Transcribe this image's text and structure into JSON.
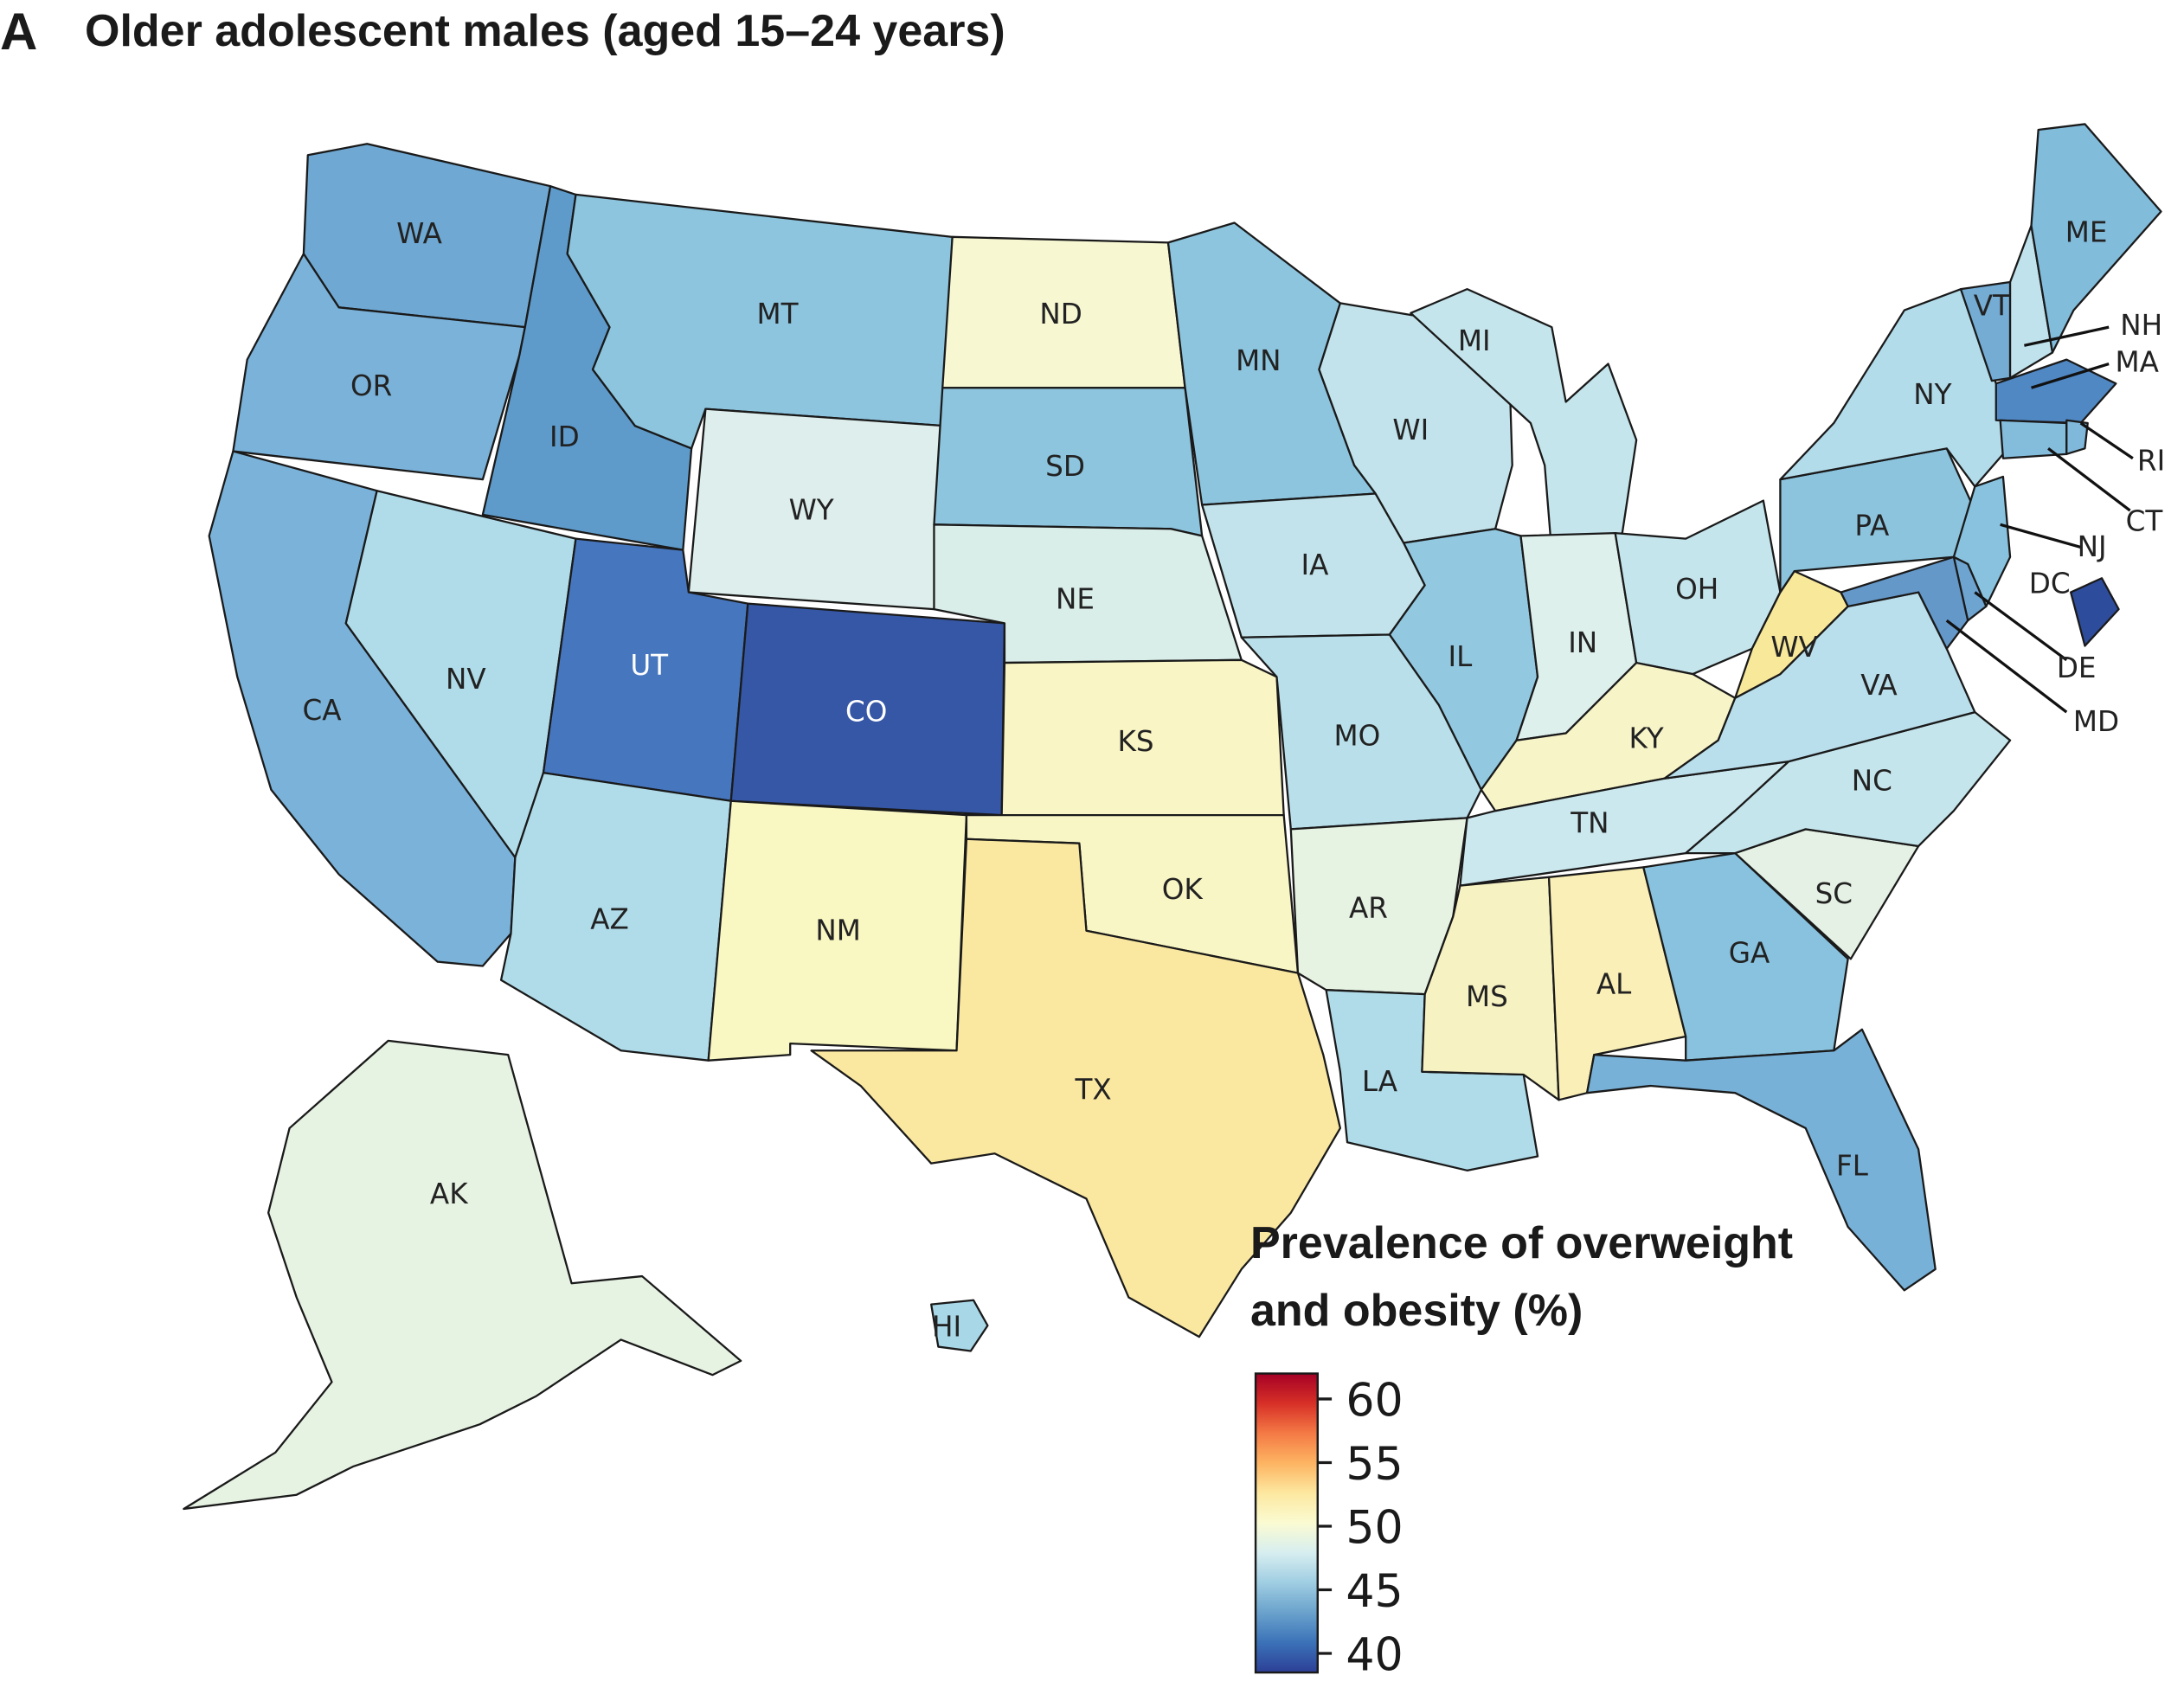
{
  "panel_letter": "A",
  "title": "Older adolescent males (aged 15–24 years)",
  "legend": {
    "title_line1": "Prevalence of overweight",
    "title_line2": "and obesity (%)",
    "ticks": [
      {
        "label": "60",
        "value": 60
      },
      {
        "label": "55",
        "value": 55
      },
      {
        "label": "50",
        "value": 50
      },
      {
        "label": "45",
        "value": 45
      },
      {
        "label": "40",
        "value": 40
      }
    ],
    "range": [
      38.5,
      62
    ],
    "colormap": [
      "#2c3f96",
      "#3b72b8",
      "#6aa2cc",
      "#9fcde2",
      "#d7eef0",
      "#fafbd2",
      "#fde8a0",
      "#fdb462",
      "#f47a45",
      "#d73027",
      "#a50026"
    ]
  },
  "states": [
    {
      "code": "WA",
      "label": "WA",
      "value": 44.3,
      "color": "#6fa8d2"
    },
    {
      "code": "OR",
      "label": "OR",
      "value": 44.8,
      "color": "#7ab2d9"
    },
    {
      "code": "CA",
      "label": "CA",
      "value": 44.8,
      "color": "#7ab2d9"
    },
    {
      "code": "ID",
      "label": "ID",
      "value": 43.0,
      "color": "#5e9bcb"
    },
    {
      "code": "NV",
      "label": "NV",
      "value": 47.0,
      "color": "#b0dcea"
    },
    {
      "code": "MT",
      "label": "MT",
      "value": 45.6,
      "color": "#8dc5de"
    },
    {
      "code": "WY",
      "label": "WY",
      "value": 48.6,
      "color": "#deeeec"
    },
    {
      "code": "UT",
      "label": "UT",
      "value": 41.5,
      "color": "#4676be"
    },
    {
      "code": "CO",
      "label": "CO",
      "value": 40.0,
      "color": "#3557a6"
    },
    {
      "code": "AZ",
      "label": "AZ",
      "value": 47.0,
      "color": "#b0dcea"
    },
    {
      "code": "NM",
      "label": "NM",
      "value": 50.5,
      "color": "#f9f7c2"
    },
    {
      "code": "ND",
      "label": "ND",
      "value": 50.2,
      "color": "#f7f7d2"
    },
    {
      "code": "SD",
      "label": "SD",
      "value": 45.6,
      "color": "#8dc5de"
    },
    {
      "code": "NE",
      "label": "NE",
      "value": 48.5,
      "color": "#d9ede9"
    },
    {
      "code": "KS",
      "label": "KS",
      "value": 50.5,
      "color": "#f9f5c4"
    },
    {
      "code": "OK",
      "label": "OK",
      "value": 50.4,
      "color": "#f9f6c5"
    },
    {
      "code": "TX",
      "label": "TX",
      "value": 52.3,
      "color": "#fbe8a0"
    },
    {
      "code": "MN",
      "label": "MN",
      "value": 45.6,
      "color": "#8dc5de"
    },
    {
      "code": "IA",
      "label": "IA",
      "value": 47.5,
      "color": "#c2e3eb"
    },
    {
      "code": "MO",
      "label": "MO",
      "value": 47.2,
      "color": "#b8dfea"
    },
    {
      "code": "AR",
      "label": "AR",
      "value": 49.0,
      "color": "#e6f2e2"
    },
    {
      "code": "LA",
      "label": "LA",
      "value": 47.0,
      "color": "#b0dcea"
    },
    {
      "code": "WI",
      "label": "WI",
      "value": 47.5,
      "color": "#c2e3eb"
    },
    {
      "code": "IL",
      "label": "IL",
      "value": 45.8,
      "color": "#92c8e0"
    },
    {
      "code": "MI",
      "label": "MI",
      "value": 47.6,
      "color": "#c5e5ec"
    },
    {
      "code": "IN",
      "label": "IN",
      "value": 48.6,
      "color": "#def0ec"
    },
    {
      "code": "OH",
      "label": "OH",
      "value": 47.6,
      "color": "#c5e5ec"
    },
    {
      "code": "KY",
      "label": "KY",
      "value": 50.4,
      "color": "#f7f4c8"
    },
    {
      "code": "TN",
      "label": "TN",
      "value": 47.8,
      "color": "#cbe8ef"
    },
    {
      "code": "MS",
      "label": "MS",
      "value": 50.6,
      "color": "#f7f2c2"
    },
    {
      "code": "AL",
      "label": "AL",
      "value": 51.2,
      "color": "#faefb6"
    },
    {
      "code": "GA",
      "label": "GA",
      "value": 45.4,
      "color": "#88c2de"
    },
    {
      "code": "FL",
      "label": "FL",
      "value": 44.7,
      "color": "#78b1d8"
    },
    {
      "code": "SC",
      "label": "SC",
      "value": 49.2,
      "color": "#e4f1e4"
    },
    {
      "code": "NC",
      "label": "NC",
      "value": 47.6,
      "color": "#c5e5ec"
    },
    {
      "code": "VA",
      "label": "VA",
      "value": 47.3,
      "color": "#badfec"
    },
    {
      "code": "WV",
      "label": "WV",
      "value": 52.0,
      "color": "#f8e89a"
    },
    {
      "code": "PA",
      "label": "PA",
      "value": 45.7,
      "color": "#8cc4de"
    },
    {
      "code": "NY",
      "label": "NY",
      "value": 46.8,
      "color": "#b3dceb"
    },
    {
      "code": "VT",
      "label": "VT",
      "value": 44.5,
      "color": "#74acd4"
    },
    {
      "code": "NH",
      "label": "NH",
      "value": 47.4,
      "color": "#c0e2ec"
    },
    {
      "code": "ME",
      "label": "ME",
      "value": 45.2,
      "color": "#82bcdb"
    },
    {
      "code": "MA",
      "label": "MA",
      "value": 42.3,
      "color": "#5088c4"
    },
    {
      "code": "RI",
      "label": "RI",
      "value": 45.0,
      "color": "#7fb8da"
    },
    {
      "code": "CT",
      "label": "CT",
      "value": 45.2,
      "color": "#84bcdc"
    },
    {
      "code": "NJ",
      "label": "NJ",
      "value": 45.4,
      "color": "#88c2de"
    },
    {
      "code": "DE",
      "label": "DE",
      "value": 44.2,
      "color": "#6ea4d0"
    },
    {
      "code": "MD",
      "label": "MD",
      "value": 43.4,
      "color": "#6498c9"
    },
    {
      "code": "DC",
      "label": "DC",
      "value": 39.5,
      "color": "#2e4c9c"
    },
    {
      "code": "AK",
      "label": "AK",
      "value": 49.2,
      "color": "#e6f2e2"
    },
    {
      "code": "HI",
      "label": "HI",
      "value": 46.6,
      "color": "#a8d8e8"
    }
  ]
}
